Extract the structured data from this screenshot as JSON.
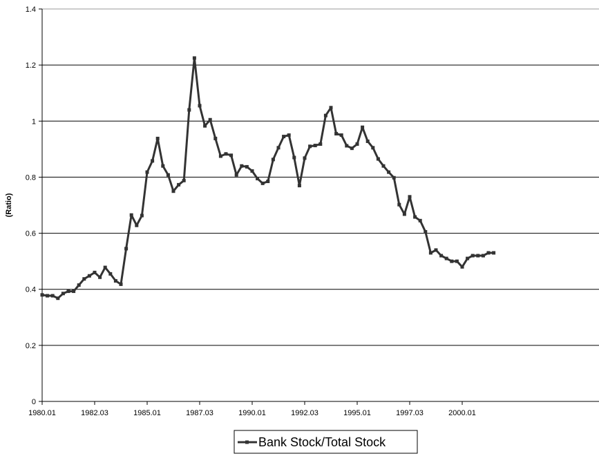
{
  "chart_data": {
    "type": "line",
    "title": "",
    "xlabel": "",
    "ylabel": "(Ratio)",
    "ylim": [
      0,
      1.4
    ],
    "y_ticks": [
      "0",
      "0.2",
      "0.4",
      "0.6",
      "0.8",
      "1",
      "1.2",
      "1.4"
    ],
    "x_tick_labels": [
      "1980.01",
      "1982.03",
      "1985.01",
      "1987.03",
      "1990.01",
      "1992.03",
      "1995.01",
      "1997.03",
      "2000.01"
    ],
    "grid": "horizontal",
    "legend_position": "bottom-center",
    "line_color": "#333333",
    "series": [
      {
        "name": "Bank Stock/Total Stock",
        "values": [
          0.38,
          0.377,
          0.377,
          0.368,
          0.385,
          0.393,
          0.393,
          0.415,
          0.437,
          0.448,
          0.46,
          0.443,
          0.478,
          0.455,
          0.43,
          0.418,
          0.545,
          0.665,
          0.628,
          0.663,
          0.818,
          0.858,
          0.938,
          0.84,
          0.808,
          0.75,
          0.773,
          0.788,
          1.04,
          1.225,
          1.055,
          0.983,
          1.005,
          0.938,
          0.875,
          0.883,
          0.878,
          0.808,
          0.84,
          0.837,
          0.822,
          0.795,
          0.778,
          0.785,
          0.863,
          0.905,
          0.945,
          0.95,
          0.87,
          0.77,
          0.868,
          0.91,
          0.913,
          0.918,
          1.02,
          1.048,
          0.955,
          0.95,
          0.912,
          0.903,
          0.918,
          0.978,
          0.928,
          0.905,
          0.865,
          0.84,
          0.818,
          0.798,
          0.702,
          0.668,
          0.73,
          0.658,
          0.645,
          0.605,
          0.53,
          0.54,
          0.52,
          0.51,
          0.5,
          0.5,
          0.48,
          0.51,
          0.52,
          0.52,
          0.52,
          0.53,
          0.53
        ]
      }
    ]
  }
}
